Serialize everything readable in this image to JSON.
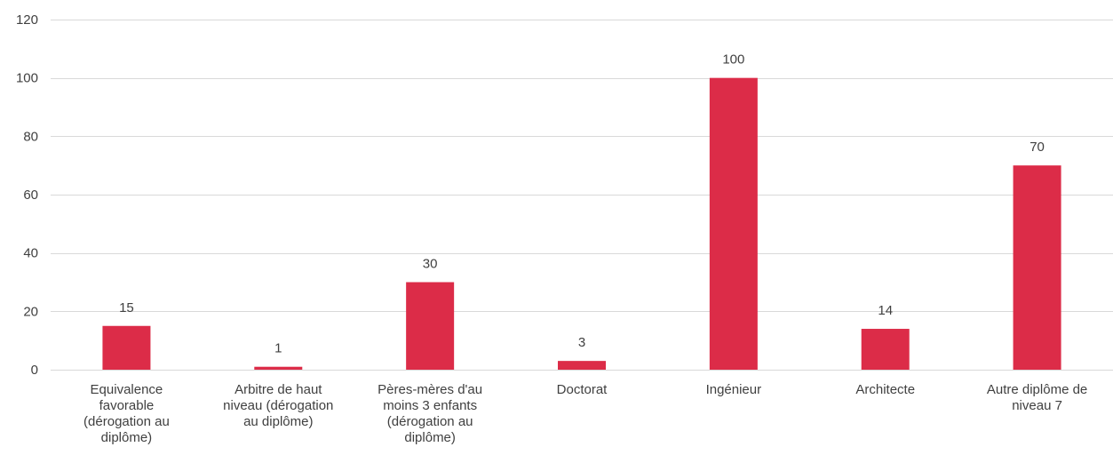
{
  "chart_data": {
    "type": "bar",
    "title": "",
    "xlabel": "",
    "ylabel": "",
    "categories": [
      [
        "Equivalence",
        "favorable",
        "(dérogation au",
        "diplôme)"
      ],
      [
        "Arbitre de haut",
        "niveau (dérogation",
        "au diplôme)"
      ],
      [
        "Pères-mères d'au",
        "moins 3 enfants",
        "(dérogation au",
        "diplôme)"
      ],
      [
        "Doctorat"
      ],
      [
        "Ingénieur"
      ],
      [
        "Architecte"
      ],
      [
        "Autre diplôme de",
        "niveau 7"
      ]
    ],
    "values": [
      15,
      1,
      30,
      3,
      100,
      14,
      70
    ],
    "ylim": [
      0,
      120
    ],
    "yticks": [
      0,
      20,
      40,
      60,
      80,
      100,
      120
    ],
    "grid": true,
    "legend": "none",
    "bar_color": "#dc2c48"
  }
}
